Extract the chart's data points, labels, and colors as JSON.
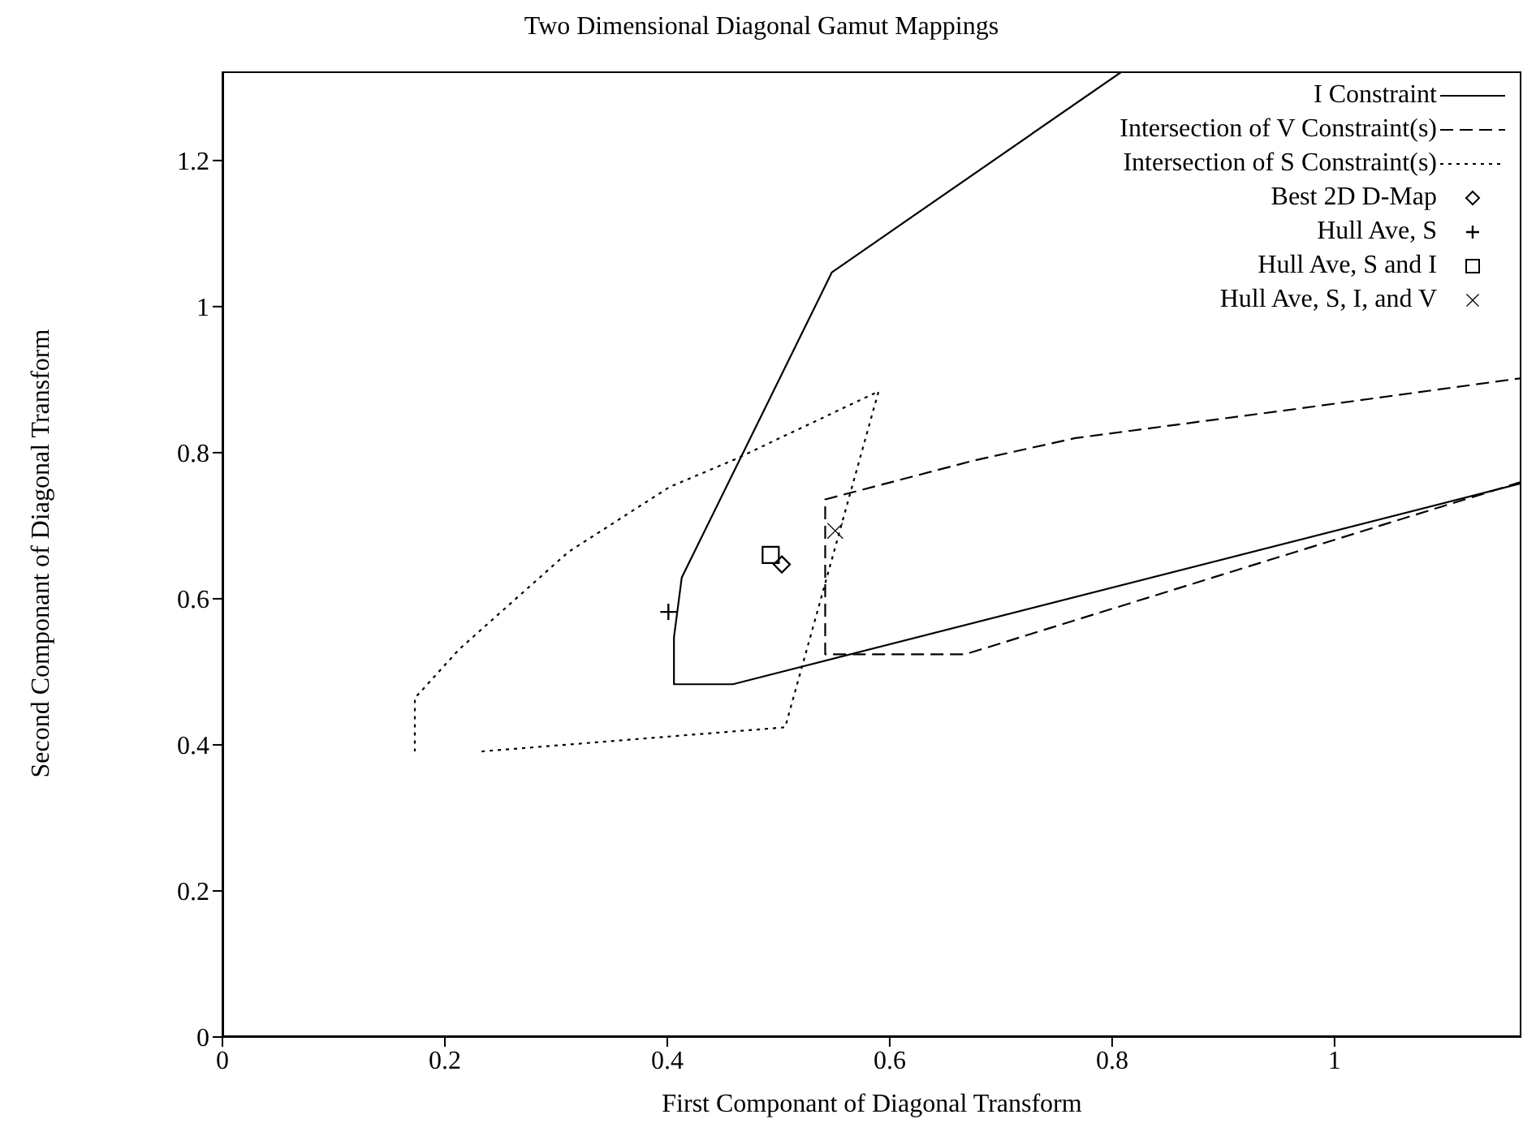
{
  "chart_data": {
    "type": "line",
    "title": "Two Dimensional Diagonal Gamut Mappings",
    "xlabel": "First Componant of Diagonal Transform",
    "ylabel": "Second Componant of Diagonal Transform",
    "xlim": [
      0,
      1.168
    ],
    "ylim": [
      0,
      1.322
    ],
    "xticks": [
      0,
      0.2,
      0.4,
      0.6,
      0.8,
      1
    ],
    "yticks": [
      0,
      0.2,
      0.4,
      0.6,
      0.8,
      1,
      1.2
    ],
    "grid": false,
    "legend": "top right",
    "series": [
      {
        "name": "I Constraint",
        "line_style": "solid",
        "color": "#000000",
        "x": [
          1.168,
          0.459,
          0.406,
          0.406,
          0.413,
          0.548,
          0.809
        ],
        "values": [
          0.758,
          0.483,
          0.483,
          0.547,
          0.629,
          1.047,
          1.322
        ]
      },
      {
        "name": "Intersection of V Constraint(s)",
        "line_style": "dashed",
        "color": "#000000",
        "x": [
          1.168,
          0.668,
          0.542,
          0.542,
          0.675,
          0.767,
          0.966,
          1.168
        ],
        "values": [
          0.76,
          0.524,
          0.524,
          0.736,
          0.789,
          0.82,
          0.86,
          0.902
        ]
      },
      {
        "name": "Intersection of S Constraint(s)",
        "line_style": "dotted",
        "color": "#000000",
        "x": [
          0.233,
          0.506,
          0.59,
          0.461,
          0.402,
          0.311,
          0.213,
          0.173,
          0.173
        ],
        "values": [
          0.391,
          0.424,
          0.884,
          0.791,
          0.753,
          0.664,
          0.531,
          0.464,
          0.391
        ]
      },
      {
        "name": "Best 2D D-Map",
        "type": "scatter",
        "marker": "diamond",
        "color": "#000000",
        "x": [
          0.503
        ],
        "values": [
          0.647
        ]
      },
      {
        "name": "Hull Ave, S",
        "type": "scatter",
        "marker": "cross",
        "color": "#000000",
        "x": [
          0.401
        ],
        "values": [
          0.582
        ]
      },
      {
        "name": "Hull Ave, S and I",
        "type": "scatter",
        "marker": "square",
        "color": "#000000",
        "x": [
          0.493
        ],
        "values": [
          0.66
        ]
      },
      {
        "name": "Hull Ave, S, I, and V",
        "type": "scatter",
        "marker": "x",
        "color": "#000000",
        "x": [
          0.551
        ],
        "values": [
          0.693
        ]
      }
    ]
  }
}
